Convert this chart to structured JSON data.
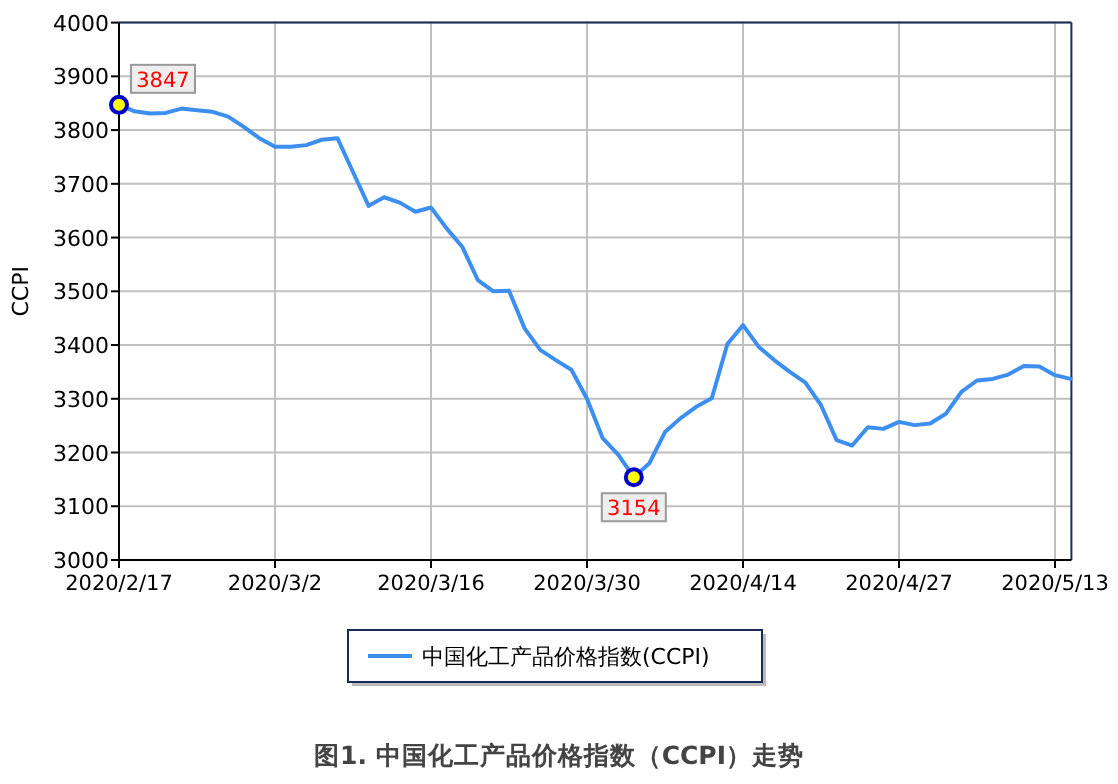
{
  "chart_data": {
    "type": "line",
    "title": "图1. 中国化工产品价格指数（CCPI）走势",
    "ylabel": "CCPI",
    "categories": [
      "2020/2/17",
      null,
      null,
      null,
      null,
      null,
      null,
      null,
      null,
      null,
      "2020/3/2",
      null,
      null,
      null,
      null,
      null,
      null,
      null,
      null,
      null,
      "2020/3/16",
      null,
      null,
      null,
      null,
      null,
      null,
      null,
      null,
      null,
      "2020/3/30",
      null,
      null,
      null,
      null,
      null,
      null,
      null,
      null,
      null,
      "2020/4/14",
      null,
      null,
      null,
      null,
      null,
      null,
      null,
      null,
      null,
      "2020/4/27",
      null,
      null,
      null,
      null,
      null,
      null,
      null,
      null,
      null,
      "2020/5/13",
      null
    ],
    "series": [
      {
        "name": "中国化工产品价格指数(CCPI)",
        "color": "#3d8fef",
        "values": [
          3847,
          3835,
          3831,
          3832,
          3840,
          3837,
          3834,
          3825,
          3806,
          3785,
          3769,
          3769,
          3772,
          3782,
          3785,
          3722,
          3659,
          3675,
          3665,
          3648,
          3656,
          3617,
          3583,
          3521,
          3500,
          3501,
          3431,
          3391,
          3372,
          3354,
          3300,
          3227,
          3196,
          3154,
          3180,
          3238,
          3264,
          3285,
          3301,
          3402,
          3437,
          3397,
          3372,
          3350,
          3330,
          3288,
          3223,
          3213,
          3247,
          3244,
          3257,
          3251,
          3254,
          3272,
          3313,
          3334,
          3337,
          3345,
          3361,
          3360,
          3344,
          3337
        ],
        "value_labels": [
          "3847",
          null,
          null,
          null,
          null,
          null,
          null,
          null,
          null,
          null,
          null,
          null,
          null,
          null,
          null,
          null,
          null,
          null,
          null,
          null,
          null,
          null,
          null,
          null,
          null,
          null,
          null,
          null,
          null,
          null,
          null,
          null,
          null,
          "3154",
          null,
          null,
          null,
          null,
          null,
          null,
          null,
          null,
          null,
          null,
          null,
          null,
          null,
          null,
          null,
          null,
          null,
          null,
          null,
          null,
          null,
          null,
          null,
          null,
          null,
          null,
          null,
          null
        ]
      }
    ],
    "ylim": [
      3000,
      4000
    ],
    "yticks": [
      3000,
      3100,
      3200,
      3300,
      3400,
      3500,
      3600,
      3700,
      3800,
      3900,
      4000
    ],
    "grid": true,
    "legend": "bottom"
  }
}
